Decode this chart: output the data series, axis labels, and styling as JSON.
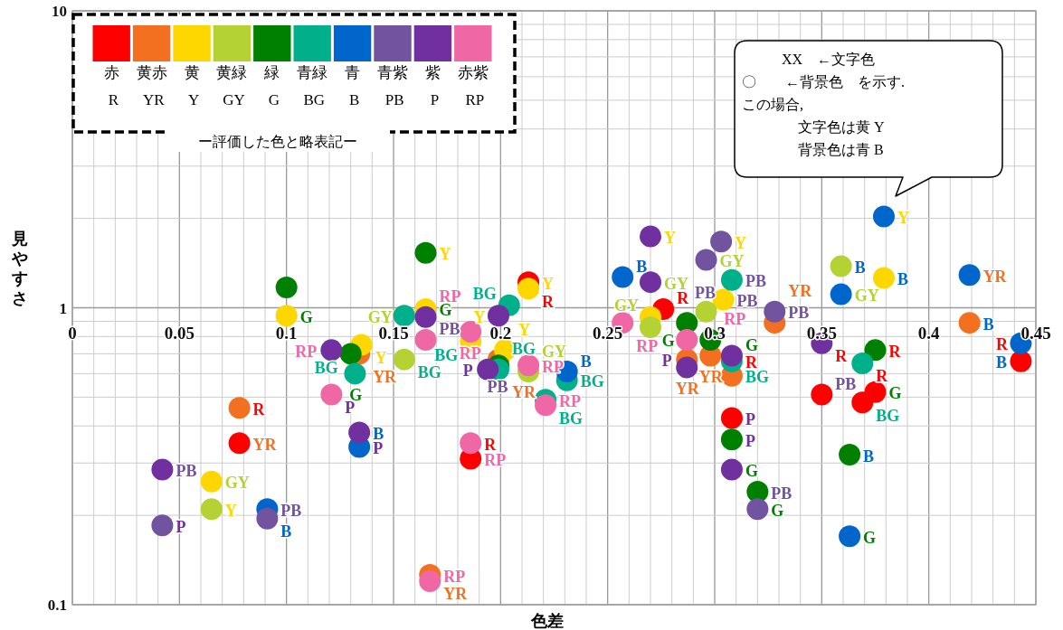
{
  "chart_data": {
    "type": "scatter",
    "xlabel": "色差",
    "ylabel": "見やすさ",
    "xlim": [
      0,
      0.45
    ],
    "xticks": [
      0,
      0.05,
      0.1,
      0.15,
      0.2,
      0.25,
      0.3,
      0.35,
      0.4,
      0.45
    ],
    "ylim": [
      0.1,
      10
    ],
    "yticks": [
      0.1,
      1,
      10
    ],
    "log": "y",
    "grid": true,
    "legend": "top left",
    "legend_title": "ー評価した色と略表記ー",
    "marker": "circle",
    "annotations": [
      "XX　←文字色",
      "〇　　←背景色　を示す.",
      "この場合,",
      "文字色は黄 Y",
      "背景色は青 B"
    ],
    "series": [
      {
        "name": "赤 R",
        "color": "#ff0000",
        "x": [
          0.078,
          0.186,
          0.213,
          0.276,
          0.308,
          0.35,
          0.375,
          0.369,
          0.443
        ],
        "values": [
          0.35,
          0.31,
          1.22,
          0.99,
          0.425,
          0.51,
          0.52,
          0.48,
          0.66
        ],
        "value_labels": [
          "YR",
          "RP",
          "Y",
          "R",
          "P",
          "PB",
          "G",
          "BG",
          "B"
        ]
      },
      {
        "name": "黄赤 YR",
        "color": "#f37021",
        "x": [
          0.078,
          0.134,
          0.167,
          0.199,
          0.287,
          0.298,
          0.308,
          0.328,
          0.419
        ],
        "values": [
          0.46,
          0.7,
          0.126,
          0.67,
          0.67,
          0.69,
          0.59,
          0.89,
          0.89
        ],
        "value_labels": [
          "R",
          "YR",
          "RP",
          "BG",
          "P",
          "YR",
          "BG",
          "PB",
          "B"
        ]
      },
      {
        "name": "黄 Y",
        "color": "#ffd700",
        "x": [
          0.065,
          0.1,
          0.135,
          0.165,
          0.186,
          0.202,
          0.213,
          0.27,
          0.304,
          0.379
        ],
        "values": [
          0.26,
          0.94,
          0.75,
          0.99,
          0.77,
          0.72,
          1.16,
          0.93,
          1.065,
          1.26
        ],
        "value_labels": [
          "GY",
          "G",
          "Y",
          "G",
          "BG",
          "Y",
          "R",
          "GY",
          "PB",
          "B"
        ]
      },
      {
        "name": "黄緑 GY",
        "color": "#b4d234",
        "x": [
          0.065,
          0.155,
          0.213,
          0.27,
          0.296,
          0.359
        ],
        "values": [
          0.21,
          0.67,
          0.61,
          0.86,
          0.97,
          1.38
        ],
        "value_labels": [
          "Y",
          "BG",
          "GY",
          null,
          "PB",
          "B"
        ]
      },
      {
        "name": "緑 G",
        "color": "#008000",
        "x": [
          0.1,
          0.13,
          0.165,
          0.199,
          0.287,
          0.298,
          0.308,
          0.32,
          0.375,
          0.363
        ],
        "values": [
          1.17,
          0.7,
          1.53,
          0.64,
          0.89,
          0.78,
          0.36,
          0.24,
          0.72,
          0.32
        ],
        "value_labels": [
          null,
          "BG",
          "Y",
          "PB",
          null,
          "RP",
          "P",
          "PB",
          "R",
          "B"
        ]
      },
      {
        "name": "青緑 BG",
        "color": "#00b08a",
        "x": [
          0.132,
          0.155,
          0.199,
          0.204,
          0.231,
          0.221,
          0.308,
          0.308,
          0.369
        ],
        "values": [
          0.6,
          0.94,
          0.62,
          1.02,
          0.57,
          0.49,
          0.66,
          1.24,
          0.65
        ],
        "value_labels": [
          "G",
          "GY",
          "YR",
          "BG",
          "BG",
          "RP",
          "R",
          "PB",
          "R"
        ]
      },
      {
        "name": "青 B",
        "color": "#0066cc",
        "x": [
          0.091,
          0.134,
          0.231,
          0.257,
          0.359,
          0.379,
          0.419,
          0.443,
          0.363
        ],
        "values": [
          0.21,
          0.34,
          0.61,
          1.27,
          1.11,
          2.03,
          1.29,
          0.76,
          0.17
        ],
        "value_labels": [
          "PB",
          "P",
          "B",
          "B",
          "GY",
          "Y",
          "YR",
          "R",
          "G"
        ]
      },
      {
        "name": "青紫 PB",
        "color": "#7153a0",
        "x": [
          0.042,
          0.091,
          0.303,
          0.296,
          0.328,
          0.32
        ],
        "values": [
          0.185,
          0.195,
          1.67,
          1.45,
          0.97,
          0.21
        ],
        "value_labels": [
          "P",
          "B",
          "Y",
          "GY",
          "YR",
          "G"
        ]
      },
      {
        "name": "紫 P",
        "color": "#7030a0",
        "x": [
          0.042,
          0.121,
          0.134,
          0.165,
          0.199,
          0.194,
          0.27,
          0.27,
          0.287,
          0.308,
          0.308,
          0.35
        ],
        "values": [
          0.285,
          0.72,
          0.38,
          0.93,
          0.94,
          0.62,
          1.74,
          1.22,
          0.63,
          0.69,
          0.285,
          0.76
        ],
        "value_labels": [
          "PB",
          "RP",
          "B",
          "RP",
          "Y",
          "P",
          "Y",
          "GY",
          "YR",
          "G",
          "G",
          "R"
        ]
      },
      {
        "name": "赤紫 RP",
        "color": "#f067a6",
        "x": [
          0.121,
          0.165,
          0.167,
          0.186,
          0.186,
          0.213,
          0.221,
          0.257,
          0.287
        ],
        "values": [
          0.51,
          0.78,
          0.12,
          0.35,
          0.83,
          0.64,
          0.47,
          0.89,
          0.78
        ],
        "value_labels": [
          "P",
          "PB",
          "YR",
          "R",
          "RP",
          "RP",
          "BG",
          "RP",
          "G"
        ]
      }
    ]
  }
}
